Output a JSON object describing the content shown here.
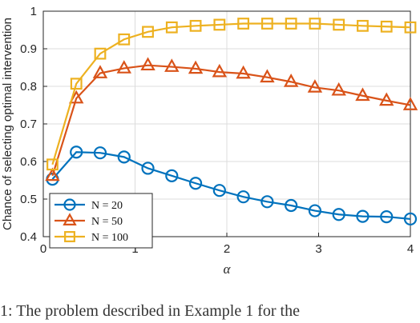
{
  "chart_data": {
    "type": "line",
    "title": "",
    "xlabel": "α",
    "ylabel": "Chance of selecting optimal intervention",
    "xlim": [
      0,
      4
    ],
    "ylim": [
      0.4,
      1
    ],
    "xticks": [
      "0",
      "1",
      "2",
      "3",
      "4"
    ],
    "yticks": [
      "0.4",
      "0.5",
      "0.6",
      "0.7",
      "0.8",
      "0.9",
      "1"
    ],
    "grid": true,
    "legend_position": "bottom-left",
    "series": [
      {
        "name": "N = 20",
        "color": "#0072BD",
        "marker": "circle",
        "x": [
          0.1,
          0.36,
          0.62,
          0.88,
          1.14,
          1.4,
          1.66,
          1.92,
          2.18,
          2.44,
          2.7,
          2.96,
          3.22,
          3.48,
          3.74,
          4.0
        ],
        "y": [
          0.553,
          0.625,
          0.623,
          0.612,
          0.582,
          0.562,
          0.542,
          0.523,
          0.506,
          0.493,
          0.483,
          0.469,
          0.459,
          0.454,
          0.453,
          0.447
        ]
      },
      {
        "name": "N = 50",
        "color": "#D95319",
        "marker": "triangle",
        "x": [
          0.1,
          0.36,
          0.62,
          0.88,
          1.14,
          1.4,
          1.66,
          1.92,
          2.18,
          2.44,
          2.7,
          2.96,
          3.22,
          3.48,
          3.74,
          4.0
        ],
        "y": [
          0.562,
          0.768,
          0.835,
          0.848,
          0.856,
          0.852,
          0.847,
          0.838,
          0.834,
          0.824,
          0.812,
          0.797,
          0.789,
          0.775,
          0.762,
          0.75
        ]
      },
      {
        "name": "N = 100",
        "color": "#EDB120",
        "marker": "square",
        "x": [
          0.1,
          0.36,
          0.62,
          0.88,
          1.14,
          1.4,
          1.66,
          1.92,
          2.18,
          2.44,
          2.7,
          2.96,
          3.22,
          3.48,
          3.74,
          4.0
        ],
        "y": [
          0.592,
          0.807,
          0.887,
          0.925,
          0.945,
          0.957,
          0.961,
          0.964,
          0.967,
          0.967,
          0.967,
          0.967,
          0.964,
          0.961,
          0.959,
          0.957
        ]
      }
    ]
  },
  "caption": "1: The problem described in Example 1 for the"
}
